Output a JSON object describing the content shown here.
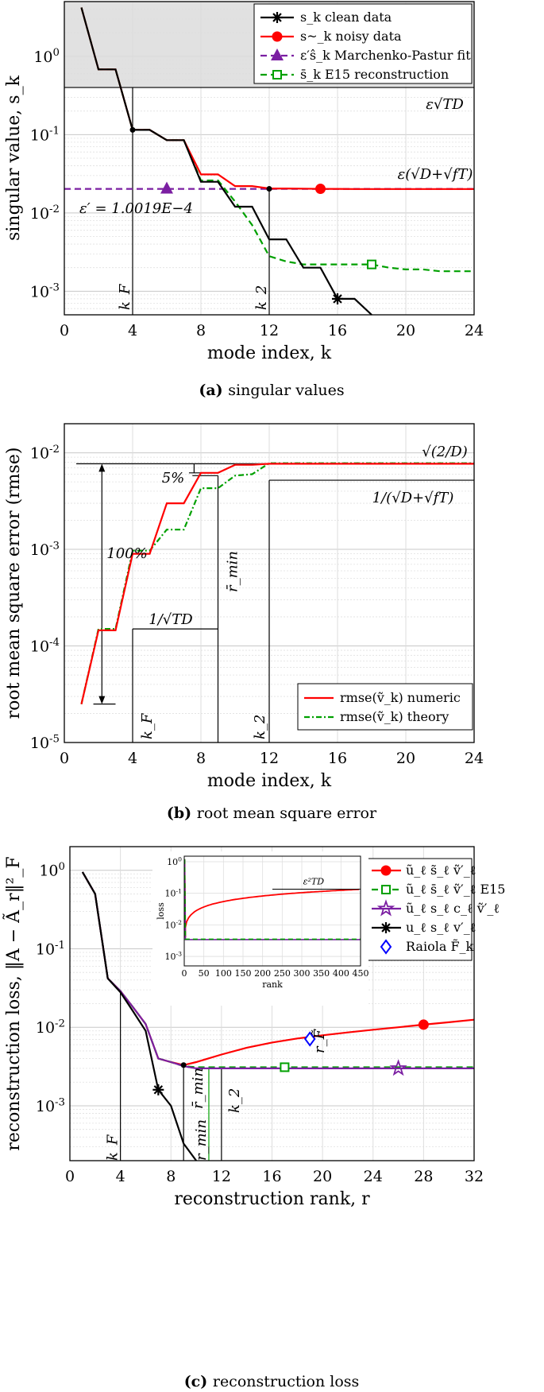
{
  "colors": {
    "clean": "#000000",
    "noisy": "#ff0000",
    "mp": "#7b1fa2",
    "e15": "#00a000",
    "raiola": "#0000ff",
    "shade": "#dcdcdc"
  },
  "chart_data": [
    {
      "type": "line",
      "panel": "a",
      "caption_label": "(a)",
      "caption_text": "singular values",
      "xlabel": "mode index, k",
      "ylabel": "singular value, s_k",
      "xlim": [
        0,
        24
      ],
      "ylim": [
        0.0005,
        5
      ],
      "yscale": "log",
      "xticks": [
        "0",
        "4",
        "8",
        "12",
        "16",
        "20",
        "24"
      ],
      "yticks": [
        {
          "v": 0.001,
          "label": "10^-3"
        },
        {
          "v": 0.01,
          "label": "10^-2"
        },
        {
          "v": 0.1,
          "label": "10^-1"
        },
        {
          "v": 1,
          "label": "10^0"
        }
      ],
      "series": [
        {
          "name": "s_k clean data",
          "color_key": "clean",
          "dash": "",
          "marker": "asterisk",
          "marker_at": [
            16,
            0.0008
          ],
          "x": [
            1,
            2,
            3,
            4,
            5,
            6,
            7,
            8,
            9,
            10,
            11,
            12,
            13,
            14,
            15,
            16,
            17,
            18
          ],
          "y": [
            4.2,
            0.68,
            0.68,
            0.115,
            0.115,
            0.085,
            0.085,
            0.025,
            0.025,
            0.012,
            0.012,
            0.0046,
            0.0046,
            0.002,
            0.002,
            0.0008,
            0.0008,
            0.0005
          ]
        },
        {
          "name": "s~_k noisy data",
          "color_key": "noisy",
          "dash": "",
          "marker": "circle",
          "marker_at": [
            15,
            0.0203
          ],
          "x": [
            1,
            2,
            3,
            4,
            5,
            6,
            7,
            8,
            9,
            10,
            11,
            12,
            13,
            14,
            15,
            16,
            17,
            18,
            19,
            20,
            21,
            22,
            23,
            24
          ],
          "y": [
            4.2,
            0.68,
            0.68,
            0.115,
            0.115,
            0.085,
            0.085,
            0.031,
            0.031,
            0.022,
            0.022,
            0.0205,
            0.0205,
            0.0204,
            0.0203,
            0.0203,
            0.0202,
            0.0202,
            0.0202,
            0.0202,
            0.0202,
            0.0202,
            0.0202,
            0.0202
          ]
        },
        {
          "name": "eps' s^_k Marchenko-Pastur fit",
          "color_key": "mp",
          "dash": "8,5",
          "marker": "triangle",
          "marker_at": [
            6,
            0.0203
          ],
          "x": [
            0,
            24
          ],
          "y": [
            0.0203,
            0.0203
          ]
        },
        {
          "name": "s-_k E15 reconstruction",
          "color_key": "e15",
          "dash": "8,5",
          "marker": "square",
          "marker_at": [
            18,
            0.0022
          ],
          "x": [
            1,
            2,
            3,
            4,
            5,
            6,
            7,
            8,
            9,
            10,
            11,
            12,
            13,
            14,
            15,
            16,
            17,
            18,
            19,
            20,
            21,
            22,
            23,
            24
          ],
          "y": [
            4.2,
            0.68,
            0.68,
            0.115,
            0.115,
            0.085,
            0.085,
            0.026,
            0.026,
            0.014,
            0.007,
            0.0028,
            0.0024,
            0.0022,
            0.0022,
            0.0022,
            0.0022,
            0.0022,
            0.002,
            0.0019,
            0.0019,
            0.0018,
            0.0018,
            0.0018
          ]
        }
      ],
      "legend": [
        "s_k clean data",
        "s~_k noisy data",
        "ε′ŝ_k Marchenko-Pastur fit",
        "s̄_k E15 reconstruction"
      ],
      "annotations": {
        "eps_sqrt_td": "ε√TD",
        "eps_sum": "ε(√D+√fT)",
        "eps_prime": "ε′ = 1.0019E−4",
        "kF": "k_F",
        "k2": "k_2"
      }
    },
    {
      "type": "line",
      "panel": "b",
      "caption_label": "(b)",
      "caption_text": "root mean square error",
      "xlabel": "mode index, k",
      "ylabel": "root mean square error (rmse)",
      "xlim": [
        0,
        24
      ],
      "ylim": [
        1e-05,
        0.02
      ],
      "yscale": "log",
      "xticks": [
        "0",
        "4",
        "8",
        "12",
        "16",
        "20",
        "24"
      ],
      "yticks": [
        {
          "v": 1e-05,
          "label": "10^-5"
        },
        {
          "v": 0.0001,
          "label": "10^-4"
        },
        {
          "v": 0.001,
          "label": "10^-3"
        },
        {
          "v": 0.01,
          "label": "10^-2"
        }
      ],
      "series": [
        {
          "name": "rmse(ṽ_k) numeric",
          "color_key": "noisy",
          "dash": "",
          "x": [
            1,
            2,
            3,
            4,
            5,
            6,
            7,
            8,
            9,
            10,
            11,
            12,
            13,
            14,
            15,
            16,
            17,
            18,
            19,
            20,
            21,
            22,
            23,
            24
          ],
          "y": [
            2.5e-05,
            0.000145,
            0.000145,
            0.0009,
            0.0009,
            0.003,
            0.003,
            0.0062,
            0.0062,
            0.0075,
            0.0075,
            0.0077,
            0.0077,
            0.0077,
            0.0077,
            0.0077,
            0.0077,
            0.0077,
            0.0077,
            0.0077,
            0.0077,
            0.0077,
            0.0077,
            0.0077
          ]
        },
        {
          "name": "rmse(ṽ_k) theory",
          "color_key": "e15",
          "dash": "7,3,2,3",
          "x": [
            1,
            2,
            3,
            4,
            5,
            6,
            7,
            8,
            9,
            10,
            11,
            12,
            13,
            14,
            15,
            16,
            17,
            18,
            19,
            20,
            21,
            22,
            23,
            24
          ],
          "y": [
            2.5e-05,
            0.00015,
            0.00015,
            0.00097,
            0.00097,
            0.0016,
            0.0016,
            0.0043,
            0.0043,
            0.0058,
            0.006,
            0.0078,
            0.0078,
            0.0078,
            0.0078,
            0.0078,
            0.0078,
            0.0078,
            0.0078,
            0.0078,
            0.0078,
            0.0078,
            0.0078,
            0.0078
          ]
        }
      ],
      "legend": [
        "rmse(ṽ_k) numeric",
        "rmse(ṽ_k) theory"
      ],
      "annotations": {
        "sqrt2d": "√(2/D)",
        "inv_sum": "1/(√D+√fT)",
        "inv_td": "1/√TD",
        "pct100": "100%",
        "pct5": "5%",
        "rmin": "r̄_min",
        "kF": "k_F",
        "k2": "k_2"
      }
    },
    {
      "type": "line",
      "panel": "c",
      "caption_label": "(c)",
      "caption_text": "reconstruction loss",
      "xlabel": "reconstruction rank, r",
      "ylabel": "reconstruction loss, ‖A − Ã_r‖²_F",
      "xlim": [
        0,
        32
      ],
      "ylim": [
        0.0002,
        2
      ],
      "yscale": "log",
      "xticks": [
        "0",
        "4",
        "8",
        "12",
        "16",
        "20",
        "24",
        "28",
        "32"
      ],
      "yticks": [
        {
          "v": 0.001,
          "label": "10^-3"
        },
        {
          "v": 0.01,
          "label": "10^-2"
        },
        {
          "v": 0.1,
          "label": "10^-1"
        },
        {
          "v": 1,
          "label": "10^0"
        }
      ],
      "series": [
        {
          "name": "ũ_ℓ s̃_ℓ ṽ′_ℓ",
          "color_key": "noisy",
          "dash": "",
          "marker": "circle",
          "marker_at": [
            28,
            0.0108
          ],
          "x": [
            1,
            2,
            3,
            4,
            5,
            6,
            7,
            8,
            9,
            10,
            12,
            14,
            16,
            18,
            20,
            22,
            24,
            26,
            28,
            30,
            32
          ],
          "y": [
            0.95,
            0.5,
            0.042,
            0.029,
            0.018,
            0.011,
            0.004,
            0.0036,
            0.0033,
            0.0036,
            0.0045,
            0.0055,
            0.0064,
            0.0072,
            0.0079,
            0.0086,
            0.0093,
            0.01,
            0.0108,
            0.0116,
            0.0125
          ]
        },
        {
          "name": "ũ_ℓ s̄_ℓ ṽ′_ℓ E15",
          "color_key": "e15",
          "dash": "8,5",
          "marker": "square",
          "marker_at": [
            17,
            0.0031
          ],
          "x": [
            1,
            2,
            3,
            4,
            5,
            6,
            7,
            8,
            9,
            10,
            12,
            14,
            16,
            18,
            20,
            22,
            24,
            26,
            28,
            30,
            32
          ],
          "y": [
            0.95,
            0.5,
            0.042,
            0.029,
            0.018,
            0.011,
            0.004,
            0.0036,
            0.0032,
            0.0031,
            0.0031,
            0.0031,
            0.0031,
            0.0031,
            0.0031,
            0.0031,
            0.0031,
            0.0031,
            0.0031,
            0.0031,
            0.0031
          ]
        },
        {
          "name": "ũ_ℓ s_ℓ c_ℓ ṽ′_ℓ",
          "color_key": "mp",
          "dash": "",
          "marker": "star",
          "marker_at": [
            26,
            0.003
          ],
          "x": [
            1,
            2,
            3,
            4,
            5,
            6,
            7,
            8,
            9,
            10,
            12,
            14,
            16,
            18,
            20,
            22,
            24,
            26,
            28,
            30,
            32
          ],
          "y": [
            0.95,
            0.5,
            0.042,
            0.029,
            0.018,
            0.011,
            0.004,
            0.0036,
            0.0032,
            0.003,
            0.003,
            0.003,
            0.003,
            0.003,
            0.003,
            0.003,
            0.003,
            0.003,
            0.003,
            0.003,
            0.003
          ]
        },
        {
          "name": "u_ℓ s_ℓ v′_ℓ",
          "color_key": "clean",
          "dash": "",
          "marker": "asterisk",
          "marker_at": [
            7,
            0.0016
          ],
          "x": [
            1,
            2,
            3,
            4,
            5,
            6,
            7,
            8,
            9,
            10
          ],
          "y": [
            0.95,
            0.5,
            0.042,
            0.028,
            0.016,
            0.009,
            0.0016,
            0.001,
            0.00033,
            0.0002
          ]
        }
      ],
      "raiola": {
        "name": "Raiola F̃_k",
        "x": 19,
        "y": 0.0071
      },
      "legend": [
        "ũ_ℓ s̃_ℓ ṽ′_ℓ",
        "ũ_ℓ s̄_ℓ ṽ′_ℓ E15",
        "ũ_ℓ s_ℓ c_ℓ ṽ′_ℓ",
        "u_ℓ s_ℓ v′_ℓ",
        "Raiola F̃_k"
      ],
      "annotations": {
        "kF": "k_F",
        "k2": "k_2",
        "rmin_bar": "r̄_min",
        "rmin": "r_min",
        "r_tilde": "r_F̃"
      },
      "inset": {
        "xlabel": "rank",
        "ylabel": "loss",
        "xlim": [
          0,
          450
        ],
        "ylim": [
          0.0005,
          1.5
        ],
        "xticks": [
          "0",
          "50",
          "100",
          "150",
          "200",
          "250",
          "300",
          "350",
          "400",
          "450"
        ],
        "yticks": [
          {
            "v": 0.001,
            "label": "10^-3"
          },
          {
            "v": 0.01,
            "label": "10^-2"
          },
          {
            "v": 0.1,
            "label": "10^-1"
          },
          {
            "v": 1,
            "label": "10^0"
          }
        ],
        "annotation": "ε²TD"
      }
    }
  ]
}
